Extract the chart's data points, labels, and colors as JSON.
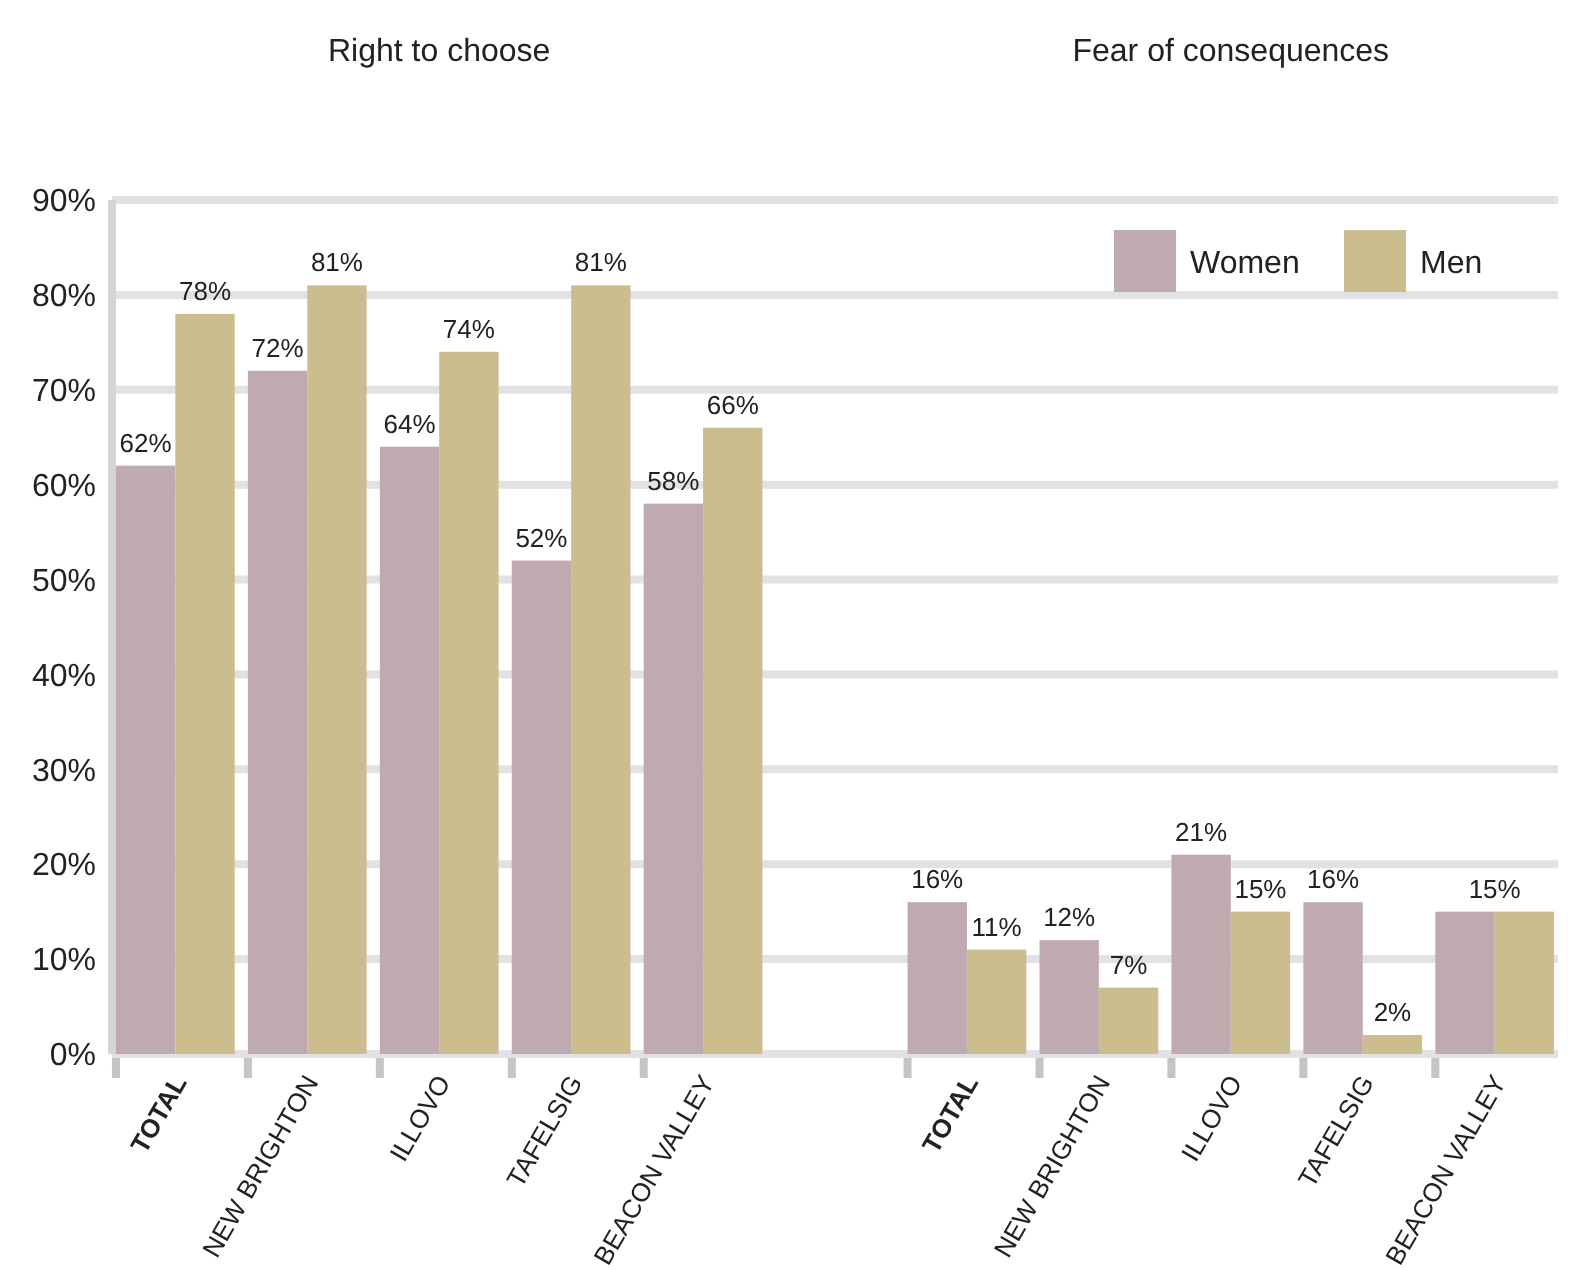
{
  "chart_data": {
    "type": "bar",
    "annotations": [
      "Right to choose",
      "Fear of consequences"
    ],
    "categories": [
      "TOTAL",
      "NEW BRIGHTON",
      "ILLOVO",
      "TAFELSIG",
      "BEACON VALLEY",
      null,
      "TOTAL",
      "NEW BRIGHTON",
      "ILLOVO",
      "TAFELSIG",
      "BEACON VALLEY"
    ],
    "series": [
      {
        "name": "Women",
        "color": "#bfabaf",
        "values": [
          62,
          72,
          64,
          52,
          58,
          null,
          16,
          12,
          21,
          16,
          15
        ],
        "value_labels": [
          "62%",
          "72%",
          "64%",
          "52%",
          "58%",
          null,
          "16%",
          "12%",
          "21%",
          "16%",
          "15%"
        ]
      },
      {
        "name": "Men",
        "color": "#cbbd8d",
        "values": [
          78,
          81,
          74,
          81,
          66,
          null,
          11,
          7,
          15,
          2,
          15
        ],
        "value_labels": [
          "78%",
          "81%",
          "74%",
          "81%",
          "66%",
          null,
          "11%",
          "7%",
          "15%",
          "2%",
          null
        ]
      }
    ],
    "ylim": [
      0,
      90
    ],
    "yticks": [
      {
        "value": 0,
        "label": "0%"
      },
      {
        "value": 10,
        "label": "10%"
      },
      {
        "value": 20,
        "label": "20%"
      },
      {
        "value": 30,
        "label": "30%"
      },
      {
        "value": 40,
        "label": "40%"
      },
      {
        "value": 50,
        "label": "50%"
      },
      {
        "value": 60,
        "label": "60%"
      },
      {
        "value": 70,
        "label": "70%"
      },
      {
        "value": 80,
        "label": "80%"
      },
      {
        "value": 90,
        "label": "90%"
      }
    ],
    "grid": "y",
    "legend": "top right"
  }
}
